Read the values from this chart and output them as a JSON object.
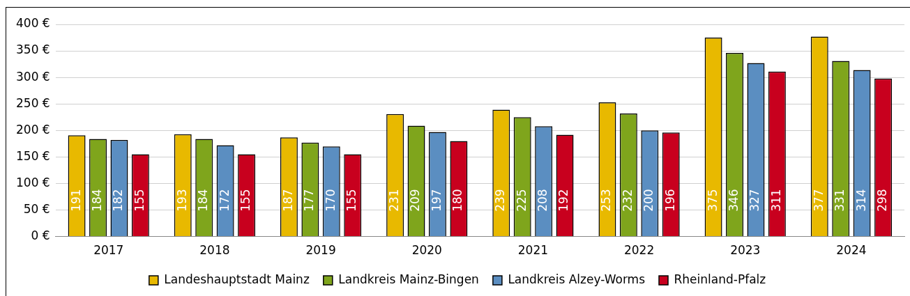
{
  "chart_data": {
    "type": "bar",
    "categories": [
      "2017",
      "2018",
      "2019",
      "2020",
      "2021",
      "2022",
      "2023",
      "2024"
    ],
    "series": [
      {
        "name": "Landeshauptstadt Mainz",
        "color": "#e8b900",
        "values": [
          191,
          193,
          187,
          231,
          239,
          253,
          375,
          377
        ]
      },
      {
        "name": "Landkreis Mainz-Bingen",
        "color": "#7fa51c",
        "values": [
          184,
          184,
          177,
          209,
          225,
          232,
          346,
          331
        ]
      },
      {
        "name": "Landkreis Alzey-Worms",
        "color": "#5b8ec1",
        "values": [
          182,
          172,
          170,
          197,
          208,
          200,
          327,
          314
        ]
      },
      {
        "name": "Rheinland-Pfalz",
        "color": "#c8001e",
        "values": [
          155,
          155,
          155,
          180,
          192,
          196,
          311,
          298
        ]
      }
    ],
    "ylim": [
      0,
      400
    ],
    "yticks": [
      {
        "value": 0,
        "label": "0 €"
      },
      {
        "value": 50,
        "label": "50 €"
      },
      {
        "value": 100,
        "label": "100 €"
      },
      {
        "value": 150,
        "label": "150 €"
      },
      {
        "value": 200,
        "label": "200 €"
      },
      {
        "value": 250,
        "label": "250 €"
      },
      {
        "value": 300,
        "label": "300 €"
      },
      {
        "value": 350,
        "label": "350 €"
      },
      {
        "value": 400,
        "label": "400 €"
      }
    ],
    "grid": "y",
    "legend": "bottom",
    "data_labels": true
  }
}
